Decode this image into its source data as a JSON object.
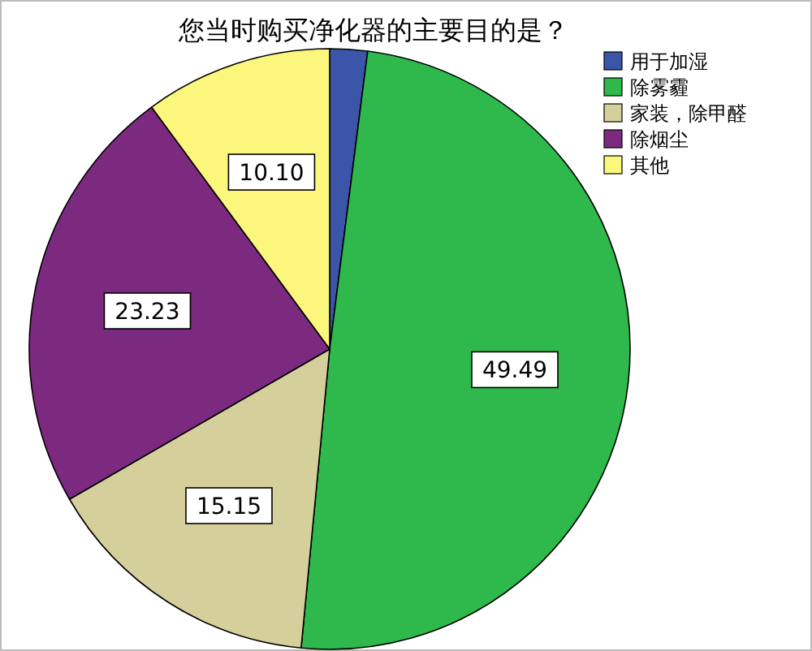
{
  "chart_data": {
    "type": "pie",
    "title": "您当时购买净化器的主要目的是？",
    "categories": [
      "用于加湿",
      "除雾霾",
      "家装，除甲醛",
      "除烟尘",
      "其他"
    ],
    "values": [
      2.02,
      49.49,
      15.15,
      23.23,
      10.1
    ],
    "colors": [
      "#3b55a8",
      "#2fb84b",
      "#d5cf9b",
      "#7b2a7f",
      "#fbf67c"
    ],
    "value_labels": [
      null,
      "49.49",
      "15.15",
      "23.23",
      "10.10"
    ],
    "legend": "top right"
  }
}
